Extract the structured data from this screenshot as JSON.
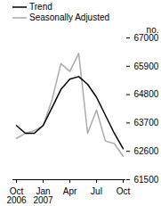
{
  "chart_data": {
    "type": "line",
    "categories": [
      "Oct 2006",
      null,
      null,
      "Jan 2007",
      null,
      null,
      "Apr",
      null,
      null,
      "Jul",
      null,
      null,
      "Oct"
    ],
    "series": [
      {
        "name": "Trend",
        "color": "#000000",
        "values": [
          63600,
          63300,
          63300,
          63600,
          64300,
          65000,
          65400,
          65500,
          65200,
          64700,
          64000,
          63300,
          62700
        ]
      },
      {
        "name": "Seasonally Adjusted",
        "color": "#aaaaaa",
        "values": [
          63100,
          63300,
          63400,
          63600,
          64600,
          66000,
          65700,
          66400,
          63300,
          64200,
          63000,
          62900,
          62400
        ]
      }
    ],
    "y_label": "no.",
    "ylim": [
      61500,
      67000
    ],
    "yticks": [
      61500,
      62600,
      63700,
      64800,
      65900,
      67000
    ],
    "grid": false,
    "legend": "top-left"
  }
}
